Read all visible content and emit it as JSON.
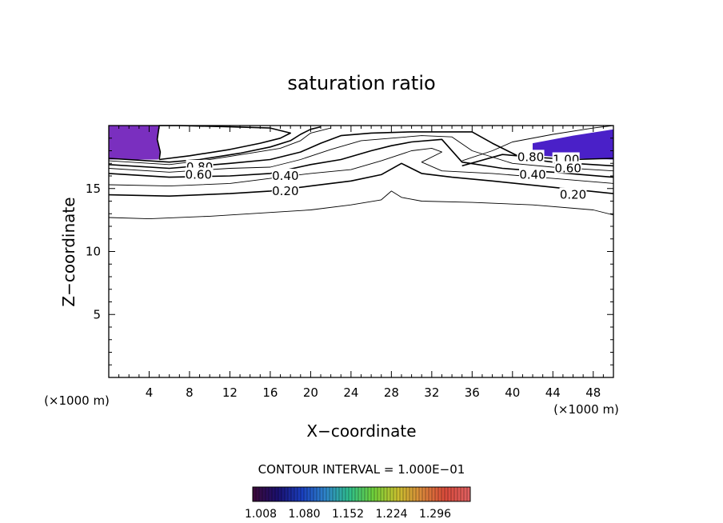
{
  "chart_data": {
    "type": "contour",
    "title": "saturation ratio",
    "xlabel": "X−coordinate",
    "ylabel": "Z−coordinate",
    "x_unit_label": "(×1000 m)",
    "y_unit_label": "(×1000 m)",
    "xlim": [
      0,
      50
    ],
    "ylim": [
      0,
      20
    ],
    "x_ticks": [
      4,
      8,
      12,
      16,
      20,
      24,
      28,
      32,
      36,
      40,
      44,
      48
    ],
    "y_ticks": [
      5,
      10,
      15
    ],
    "grid": false,
    "contour_interval_label": "CONTOUR INTERVAL = 1.000E−01",
    "contour_labels": [
      {
        "text": "0.80",
        "x": 9.0,
        "y": 16.7
      },
      {
        "text": "0.60",
        "x": 8.9,
        "y": 16.1
      },
      {
        "text": "0.40",
        "x": 17.5,
        "y": 16.0
      },
      {
        "text": "0.20",
        "x": 17.5,
        "y": 14.8
      },
      {
        "text": "0.80",
        "x": 41.8,
        "y": 17.5
      },
      {
        "text": "1.00",
        "x": 45.3,
        "y": 17.3
      },
      {
        "text": "0.60",
        "x": 45.5,
        "y": 16.6
      },
      {
        "text": "0.40",
        "x": 42.0,
        "y": 16.1
      },
      {
        "text": "0.20",
        "x": 46.0,
        "y": 14.5
      }
    ],
    "contours": [
      {
        "level": 0.1,
        "points": [
          [
            0,
            12.7
          ],
          [
            4,
            12.6
          ],
          [
            10,
            12.8
          ],
          [
            16,
            13.1
          ],
          [
            20,
            13.3
          ],
          [
            24,
            13.7
          ],
          [
            27,
            14.1
          ],
          [
            28,
            14.8
          ],
          [
            29,
            14.3
          ],
          [
            31,
            14.0
          ],
          [
            36,
            13.9
          ],
          [
            42,
            13.7
          ],
          [
            48,
            13.3
          ],
          [
            50,
            12.9
          ]
        ]
      },
      {
        "level": 0.2,
        "points": [
          [
            0,
            14.5
          ],
          [
            6,
            14.4
          ],
          [
            12,
            14.6
          ],
          [
            16,
            14.8
          ],
          [
            20,
            15.2
          ],
          [
            24,
            15.6
          ],
          [
            27,
            16.1
          ],
          [
            29,
            17.0
          ],
          [
            31,
            16.2
          ],
          [
            34,
            15.9
          ],
          [
            38,
            15.6
          ],
          [
            44,
            15.1
          ],
          [
            50,
            14.6
          ]
        ]
      },
      {
        "level": 0.3,
        "points": [
          [
            0,
            15.3
          ],
          [
            6,
            15.2
          ],
          [
            12,
            15.4
          ],
          [
            16,
            15.8
          ],
          [
            20,
            16.2
          ],
          [
            24,
            16.5
          ],
          [
            27,
            17.2
          ],
          [
            30,
            18.0
          ],
          [
            32,
            18.2
          ],
          [
            33,
            17.9
          ],
          [
            31,
            17.1
          ],
          [
            33,
            16.4
          ],
          [
            38,
            16.2
          ],
          [
            44,
            15.8
          ],
          [
            50,
            15.4
          ]
        ]
      },
      {
        "level": 0.4,
        "points": [
          [
            0,
            16.2
          ],
          [
            6,
            15.9
          ],
          [
            12,
            16.0
          ],
          [
            16,
            16.2
          ],
          [
            20,
            16.9
          ],
          [
            23,
            17.3
          ],
          [
            26,
            18.0
          ],
          [
            28,
            18.4
          ],
          [
            30,
            18.7
          ],
          [
            33,
            18.9
          ],
          [
            35,
            17.1
          ],
          [
            39,
            16.6
          ],
          [
            44,
            16.3
          ],
          [
            50,
            15.9
          ]
        ]
      },
      {
        "level": 0.5,
        "points": [
          [
            0,
            16.6
          ],
          [
            6,
            16.3
          ],
          [
            12,
            16.6
          ],
          [
            16,
            16.7
          ],
          [
            19,
            17.3
          ],
          [
            22,
            18.1
          ],
          [
            25,
            18.8
          ],
          [
            28,
            19.0
          ],
          [
            31,
            19.2
          ],
          [
            34,
            19.1
          ],
          [
            36,
            18.0
          ],
          [
            40,
            17.0
          ],
          [
            44,
            16.7
          ],
          [
            50,
            16.4
          ]
        ]
      },
      {
        "level": 0.6,
        "points": [
          [
            0,
            16.9
          ],
          [
            6,
            16.6
          ],
          [
            12,
            17.0
          ],
          [
            16,
            17.3
          ],
          [
            19,
            17.9
          ],
          [
            21,
            18.6
          ],
          [
            23,
            19.2
          ],
          [
            26,
            19.4
          ],
          [
            30,
            19.5
          ],
          [
            36,
            19.5
          ],
          [
            38,
            18.6
          ],
          [
            41,
            17.4
          ],
          [
            44,
            17.1
          ],
          [
            50,
            16.8
          ]
        ]
      },
      {
        "level": 0.7,
        "points": [
          [
            0,
            17.2
          ],
          [
            6,
            16.9
          ],
          [
            10,
            17.3
          ],
          [
            14,
            17.8
          ],
          [
            17,
            18.2
          ],
          [
            19,
            18.8
          ],
          [
            20,
            19.4
          ],
          [
            22,
            19.8
          ]
        ]
      },
      {
        "level": 0.8,
        "points": [
          [
            0,
            17.4
          ],
          [
            6,
            17.1
          ],
          [
            9,
            17.3
          ],
          [
            13,
            17.8
          ],
          [
            16,
            18.3
          ],
          [
            18,
            18.8
          ],
          [
            19,
            19.3
          ],
          [
            20,
            19.7
          ],
          [
            21,
            19.9
          ]
        ]
      },
      {
        "level": 1.0,
        "points": [
          [
            5,
            17.3
          ],
          [
            8,
            17.6
          ],
          [
            12,
            18.1
          ],
          [
            15,
            18.6
          ],
          [
            17,
            19.0
          ],
          [
            18,
            19.4
          ],
          [
            16,
            19.8
          ],
          [
            12,
            19.9
          ],
          [
            7,
            20.0
          ],
          [
            5,
            20.0
          ],
          [
            4.8,
            18.9
          ],
          [
            5.1,
            17.9
          ],
          [
            5,
            17.3
          ]
        ]
      },
      {
        "level": 0.9,
        "points": [
          [
            35,
            17.2
          ],
          [
            38,
            18.0
          ],
          [
            40,
            18.7
          ],
          [
            44,
            19.3
          ],
          [
            48,
            19.8
          ],
          [
            50,
            20.0
          ]
        ]
      },
      {
        "level": 1.0,
        "points": [
          [
            35,
            16.8
          ],
          [
            39,
            17.7
          ],
          [
            42,
            17.5
          ],
          [
            46,
            17.3
          ],
          [
            50,
            17.4
          ]
        ]
      }
    ],
    "colorbar": {
      "tick_labels": [
        "1.008",
        "1.080",
        "1.152",
        "1.224",
        "1.296"
      ],
      "colors": [
        "#3b0a3c",
        "#1a1070",
        "#1a3fbf",
        "#2f86c9",
        "#2fbf8a",
        "#6fcf3a",
        "#c9c12f",
        "#d9883a",
        "#d94a3a",
        "#e06060"
      ]
    },
    "filled_regions": [
      {
        "name": "left-supersaturation",
        "color": "#7a2fbf",
        "points": [
          [
            0,
            20
          ],
          [
            5,
            20
          ],
          [
            4.8,
            18.9
          ],
          [
            5.1,
            17.9
          ],
          [
            4.9,
            17.3
          ],
          [
            0,
            17.3
          ]
        ]
      },
      {
        "name": "right-supersaturation",
        "color": "#4a20c8",
        "points": [
          [
            42,
            18.6
          ],
          [
            46,
            19.2
          ],
          [
            50,
            19.7
          ],
          [
            50,
            17.3
          ],
          [
            46,
            17.4
          ],
          [
            43,
            17.6
          ],
          [
            42,
            18.0
          ]
        ]
      }
    ]
  }
}
